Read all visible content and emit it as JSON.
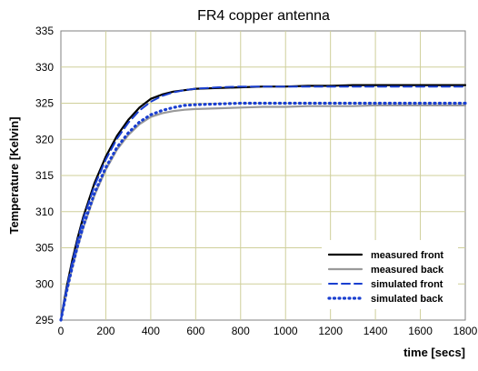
{
  "chart_data": {
    "type": "line",
    "title": "FR4 copper antenna",
    "xlabel": "time [secs]",
    "ylabel": "Temperature [Kelvin]",
    "xlim": [
      0,
      1800
    ],
    "ylim": [
      295,
      335
    ],
    "xticks": [
      0,
      200,
      400,
      600,
      800,
      1000,
      1200,
      1400,
      1600,
      1800
    ],
    "yticks": [
      295,
      300,
      305,
      310,
      315,
      320,
      325,
      330,
      335
    ],
    "grid": true,
    "legend_position": "bottom-right",
    "series": [
      {
        "name": "measured front",
        "color": "#000000",
        "style": "solid",
        "x": [
          0,
          25,
          50,
          75,
          100,
          150,
          200,
          250,
          300,
          350,
          400,
          450,
          500,
          550,
          600,
          700,
          800,
          900,
          1000,
          1100,
          1200,
          1300,
          1400,
          1500,
          1600,
          1700,
          1800
        ],
        "y": [
          295,
          299.5,
          303.2,
          306.4,
          309.3,
          314.0,
          317.6,
          320.5,
          322.7,
          324.4,
          325.6,
          326.2,
          326.6,
          326.8,
          327.0,
          327.1,
          327.2,
          327.3,
          327.3,
          327.4,
          327.4,
          327.5,
          327.5,
          327.5,
          327.5,
          327.5,
          327.5
        ]
      },
      {
        "name": "measured back",
        "color": "#9a9a9a",
        "style": "solid",
        "x": [
          0,
          25,
          50,
          75,
          100,
          150,
          200,
          250,
          300,
          350,
          400,
          450,
          500,
          550,
          600,
          700,
          800,
          900,
          1000,
          1100,
          1200,
          1300,
          1400,
          1500,
          1600,
          1700,
          1800
        ],
        "y": [
          295,
          298.8,
          302.2,
          305.1,
          307.8,
          312.3,
          315.8,
          318.6,
          320.6,
          322.1,
          323.1,
          323.6,
          323.9,
          324.1,
          324.2,
          324.3,
          324.4,
          324.5,
          324.5,
          324.6,
          324.6,
          324.6,
          324.7,
          324.7,
          324.7,
          324.7,
          324.7
        ]
      },
      {
        "name": "simulated front",
        "color": "#1a3fd0",
        "style": "dashed",
        "x": [
          0,
          25,
          50,
          75,
          100,
          150,
          200,
          250,
          300,
          350,
          400,
          450,
          500,
          550,
          600,
          700,
          800,
          900,
          1000,
          1100,
          1200,
          1300,
          1400,
          1500,
          1600,
          1700,
          1800
        ],
        "y": [
          295,
          299.3,
          302.9,
          306.1,
          309.0,
          313.6,
          317.2,
          320.1,
          322.3,
          324.0,
          325.2,
          326.0,
          326.5,
          326.8,
          327.0,
          327.2,
          327.3,
          327.3,
          327.3,
          327.3,
          327.3,
          327.3,
          327.3,
          327.3,
          327.3,
          327.3,
          327.3
        ]
      },
      {
        "name": "simulated back",
        "color": "#1a3fd0",
        "style": "dotted",
        "x": [
          0,
          25,
          50,
          75,
          100,
          150,
          200,
          250,
          300,
          350,
          400,
          450,
          500,
          550,
          600,
          700,
          800,
          900,
          1000,
          1100,
          1200,
          1300,
          1400,
          1500,
          1600,
          1700,
          1800
        ],
        "y": [
          295,
          298.9,
          302.3,
          305.3,
          308.0,
          312.6,
          316.1,
          318.9,
          320.9,
          322.4,
          323.4,
          324.0,
          324.4,
          324.7,
          324.8,
          324.9,
          325.0,
          325.0,
          325.0,
          325.0,
          325.0,
          325.0,
          325.0,
          325.0,
          325.0,
          325.0,
          325.0
        ]
      }
    ]
  }
}
